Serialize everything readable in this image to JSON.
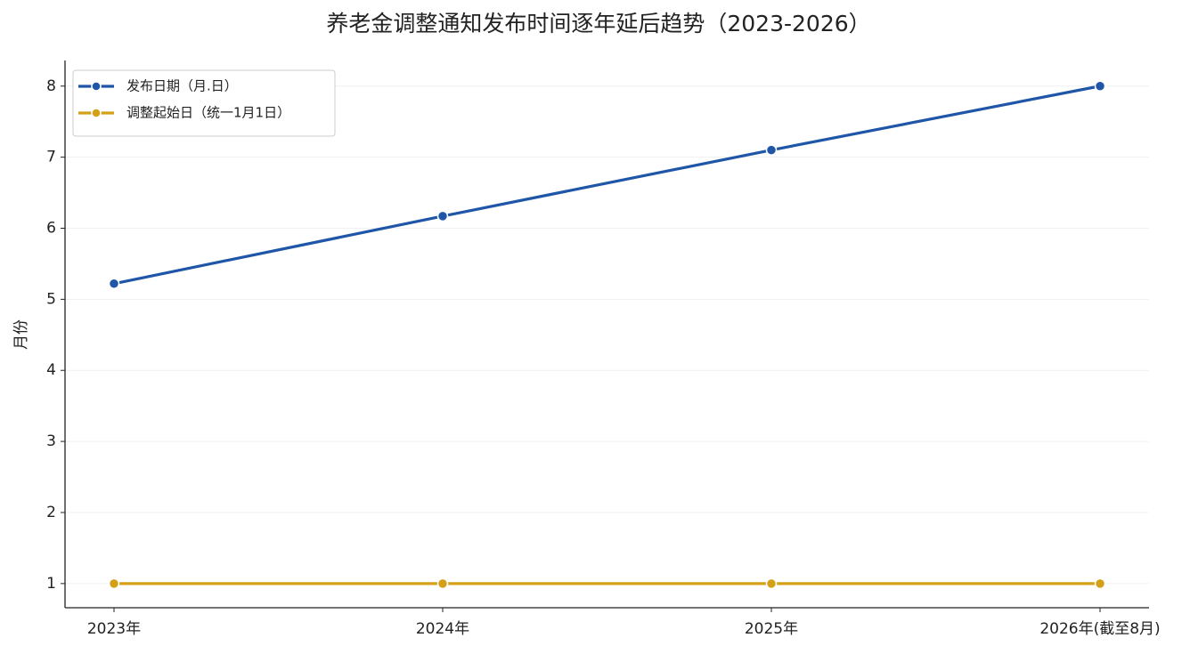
{
  "chart_data": {
    "type": "line",
    "title": "养老金调整通知发布时间逐年延后趋势（2023-2026）",
    "y_label": "月份",
    "categories": [
      "2023年",
      "2024年",
      "2025年",
      "2026年(截至8月)"
    ],
    "series": [
      {
        "name": "发布日期（月.日）",
        "color": "#1f56a8",
        "values": [
          5.22,
          6.17,
          7.1,
          8
        ]
      },
      {
        "name": "调整起始日（统一1月1日）",
        "color": "#d4a017",
        "values": [
          1,
          1,
          1,
          1
        ]
      }
    ],
    "ylim": [
      0.66,
      8.36
    ],
    "yticks": [
      1,
      2,
      3,
      4,
      5,
      6,
      7,
      8
    ],
    "grid": true,
    "legend": "upper-left"
  }
}
